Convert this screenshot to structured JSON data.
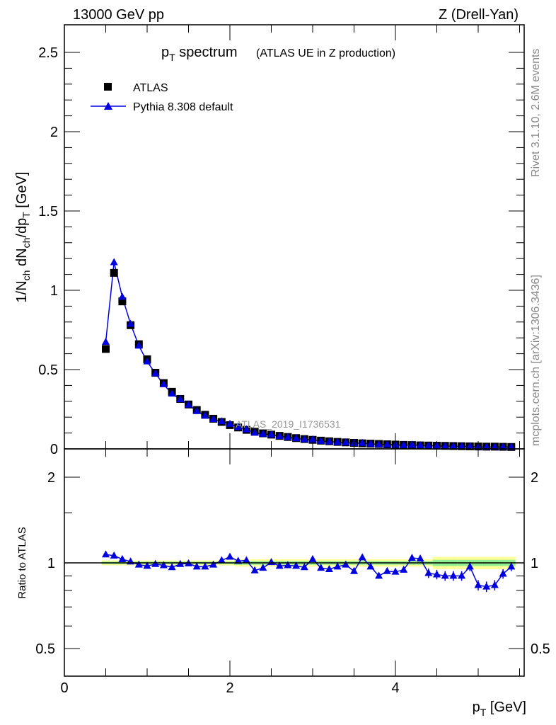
{
  "header": {
    "left": "13000 GeV pp",
    "right": "Z (Drell-Yan)"
  },
  "side": {
    "top": "Rivet 3.1.10,  2.6M events",
    "bottom": "mcplots.cern.ch [arXiv:1306.3436]"
  },
  "watermark": "ATLAS_2019_I1736531",
  "colors": {
    "data": "#000000",
    "mc": "#0000e0",
    "band_inner": "#90ee90",
    "band_outer": "#ffff99"
  },
  "chart_data": [
    {
      "type": "scatter",
      "title_main": "p",
      "title_sub": "T",
      "title_rest": " spectrum",
      "title_note": "(ATLAS UE in Z production)",
      "ylabel": "1/N_ch dN_ch/dp_T [GeV]",
      "ylim": [
        0,
        2.65
      ],
      "xlim": [
        0,
        5.55
      ],
      "yticks": [
        "0",
        "0.5",
        "1",
        "1.5",
        "2",
        "2.5"
      ],
      "legend": {
        "placement": "top-left",
        "entries": [
          "ATLAS",
          "Pythia 8.308 default"
        ]
      },
      "x": [
        0.5,
        0.6,
        0.7,
        0.8,
        0.9,
        1.0,
        1.1,
        1.2,
        1.3,
        1.4,
        1.5,
        1.6,
        1.7,
        1.8,
        1.9,
        2.0,
        2.1,
        2.2,
        2.3,
        2.4,
        2.5,
        2.6,
        2.7,
        2.8,
        2.9,
        3.0,
        3.1,
        3.2,
        3.3,
        3.4,
        3.5,
        3.6,
        3.7,
        3.8,
        3.9,
        4.0,
        4.1,
        4.2,
        4.3,
        4.4,
        4.5,
        4.6,
        4.7,
        4.8,
        4.9,
        5.0,
        5.1,
        5.2,
        5.3,
        5.4
      ],
      "series": [
        {
          "name": "ATLAS",
          "values": [
            0.63,
            1.11,
            0.93,
            0.78,
            0.66,
            0.565,
            0.48,
            0.415,
            0.36,
            0.315,
            0.28,
            0.245,
            0.215,
            0.19,
            0.17,
            0.15,
            0.135,
            0.12,
            0.108,
            0.098,
            0.09,
            0.082,
            0.075,
            0.068,
            0.062,
            0.057,
            0.052,
            0.048,
            0.044,
            0.041,
            0.038,
            0.035,
            0.033,
            0.031,
            0.029,
            0.027,
            0.025,
            0.024,
            0.022,
            0.021,
            0.02,
            0.019,
            0.018,
            0.017,
            0.016,
            0.015,
            0.014,
            0.014,
            0.013,
            0.012
          ]
        }
      ]
    },
    {
      "type": "line",
      "ylabel": "Ratio to ATLAS",
      "xlabel": "p_T [GeV]",
      "yscale": "log",
      "ylim": [
        0.4,
        2.5
      ],
      "yticks": [
        "0.5",
        "1",
        "2"
      ],
      "xticks": [
        "0",
        "2",
        "4"
      ],
      "series": [
        {
          "name": "Pythia 8.308 default",
          "values": [
            1.07,
            1.06,
            1.03,
            1.01,
            0.985,
            0.975,
            0.99,
            0.98,
            0.965,
            0.99,
            0.995,
            0.97,
            0.97,
            0.985,
            1.02,
            1.05,
            1.015,
            1.02,
            0.94,
            0.96,
            1.005,
            0.975,
            0.98,
            0.975,
            0.965,
            1.03,
            0.96,
            0.95,
            0.97,
            0.985,
            0.935,
            1.045,
            0.97,
            0.9,
            0.935,
            0.93,
            0.945,
            1.04,
            1.035,
            0.92,
            0.91,
            0.9,
            0.9,
            0.9,
            0.97,
            0.835,
            0.825,
            0.835,
            0.915,
            0.97
          ]
        }
      ]
    }
  ]
}
